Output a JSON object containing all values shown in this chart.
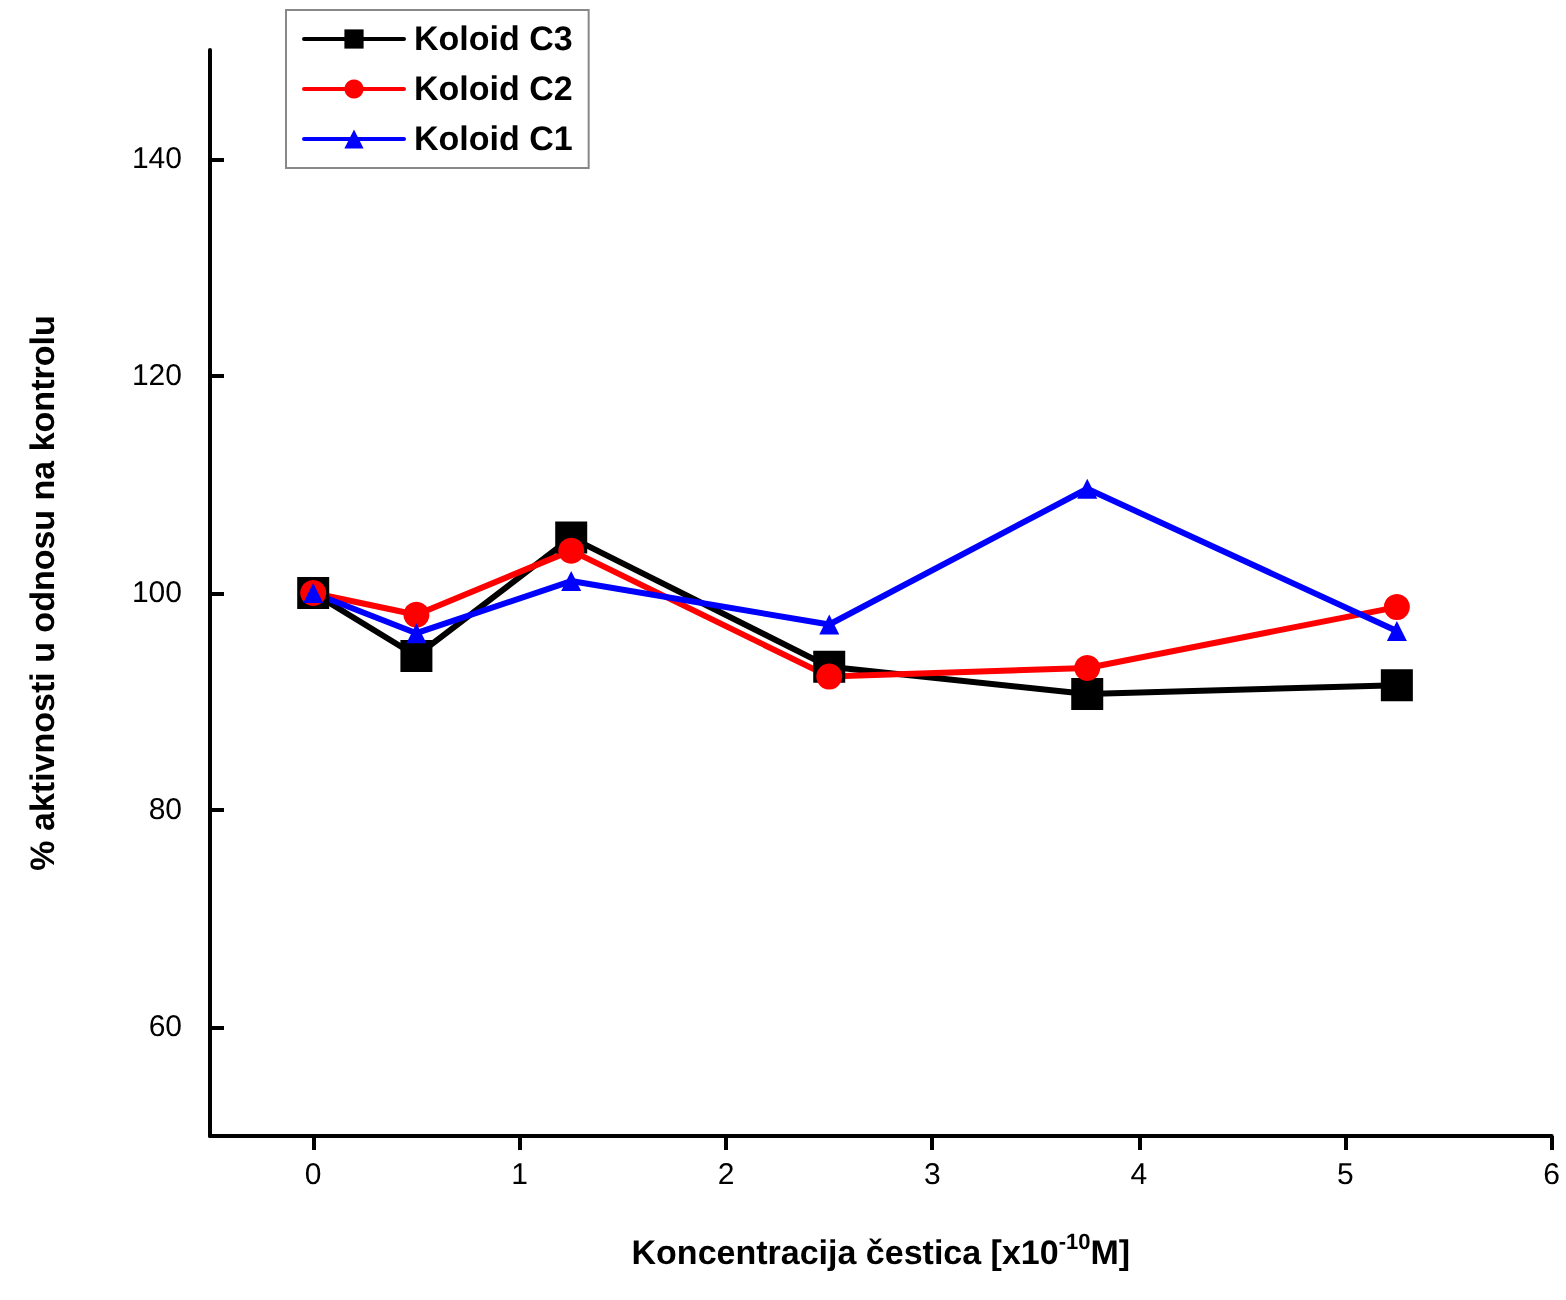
{
  "chart_data": {
    "type": "line",
    "xlabel": "Koncentracija čestica [x10$^{-10}$M]",
    "ylabel": "% aktivnosti u odnosu na kontrolu",
    "x": [
      0,
      0.5,
      1.25,
      2.5,
      3.75,
      5.25
    ],
    "series": [
      {
        "name": "Koloid C3",
        "color": "#000000",
        "marker": "square",
        "values": [
          100,
          94.2,
          105.1,
          93.2,
          90.7,
          91.5
        ]
      },
      {
        "name": "Koloid C2",
        "color": "#ff0000",
        "marker": "circle",
        "values": [
          100,
          98,
          103.9,
          92.3,
          93.1,
          98.7
        ]
      },
      {
        "name": "Koloid C1",
        "color": "#0000ff",
        "marker": "triangle",
        "values": [
          100,
          96.3,
          101.1,
          97.1,
          109.6,
          96.5
        ]
      }
    ],
    "xlim": [
      -0.5,
      6
    ],
    "xticks": [
      0,
      1,
      2,
      3,
      4,
      5,
      6
    ],
    "ylim": [
      50,
      150
    ],
    "yticks": [
      60,
      80,
      100,
      120,
      140
    ],
    "grid": false,
    "legend": "top left",
    "line_style": "solid"
  }
}
